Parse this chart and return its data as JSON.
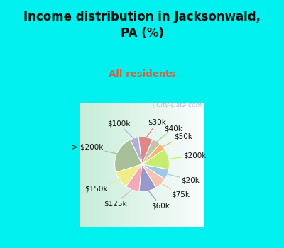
{
  "title": "Income distribution in Jacksonwald,\nPA (%)",
  "subtitle": "All residents",
  "title_color": "#111111",
  "subtitle_color": "#cc6644",
  "bg_cyan": "#00f0f0",
  "watermark": "City-Data.com",
  "labels": [
    "$100k",
    "> $200k",
    "$150k",
    "$125k",
    "$60k",
    "$75k",
    "$20k",
    "$200k",
    "$50k",
    "$40k",
    "$30k"
  ],
  "values": [
    5,
    22,
    10,
    8,
    10,
    7,
    6,
    12,
    4,
    5,
    8
  ],
  "colors": [
    "#b0b0d8",
    "#a8bf9a",
    "#f0ec88",
    "#f4a8b8",
    "#9898cc",
    "#f4c4b0",
    "#a0c8e8",
    "#c8ec70",
    "#f0b870",
    "#c4c4aa",
    "#e08888"
  ],
  "line_colors": [
    "#b0b0d8",
    "#a8bf9a",
    "#f0ec88",
    "#f4a8b8",
    "#9898cc",
    "#f4c4b0",
    "#a0c8e8",
    "#c8ec70",
    "#f0b870",
    "#c4c4aa",
    "#e08888"
  ],
  "label_fontsize": 7.5,
  "startangle": 97
}
